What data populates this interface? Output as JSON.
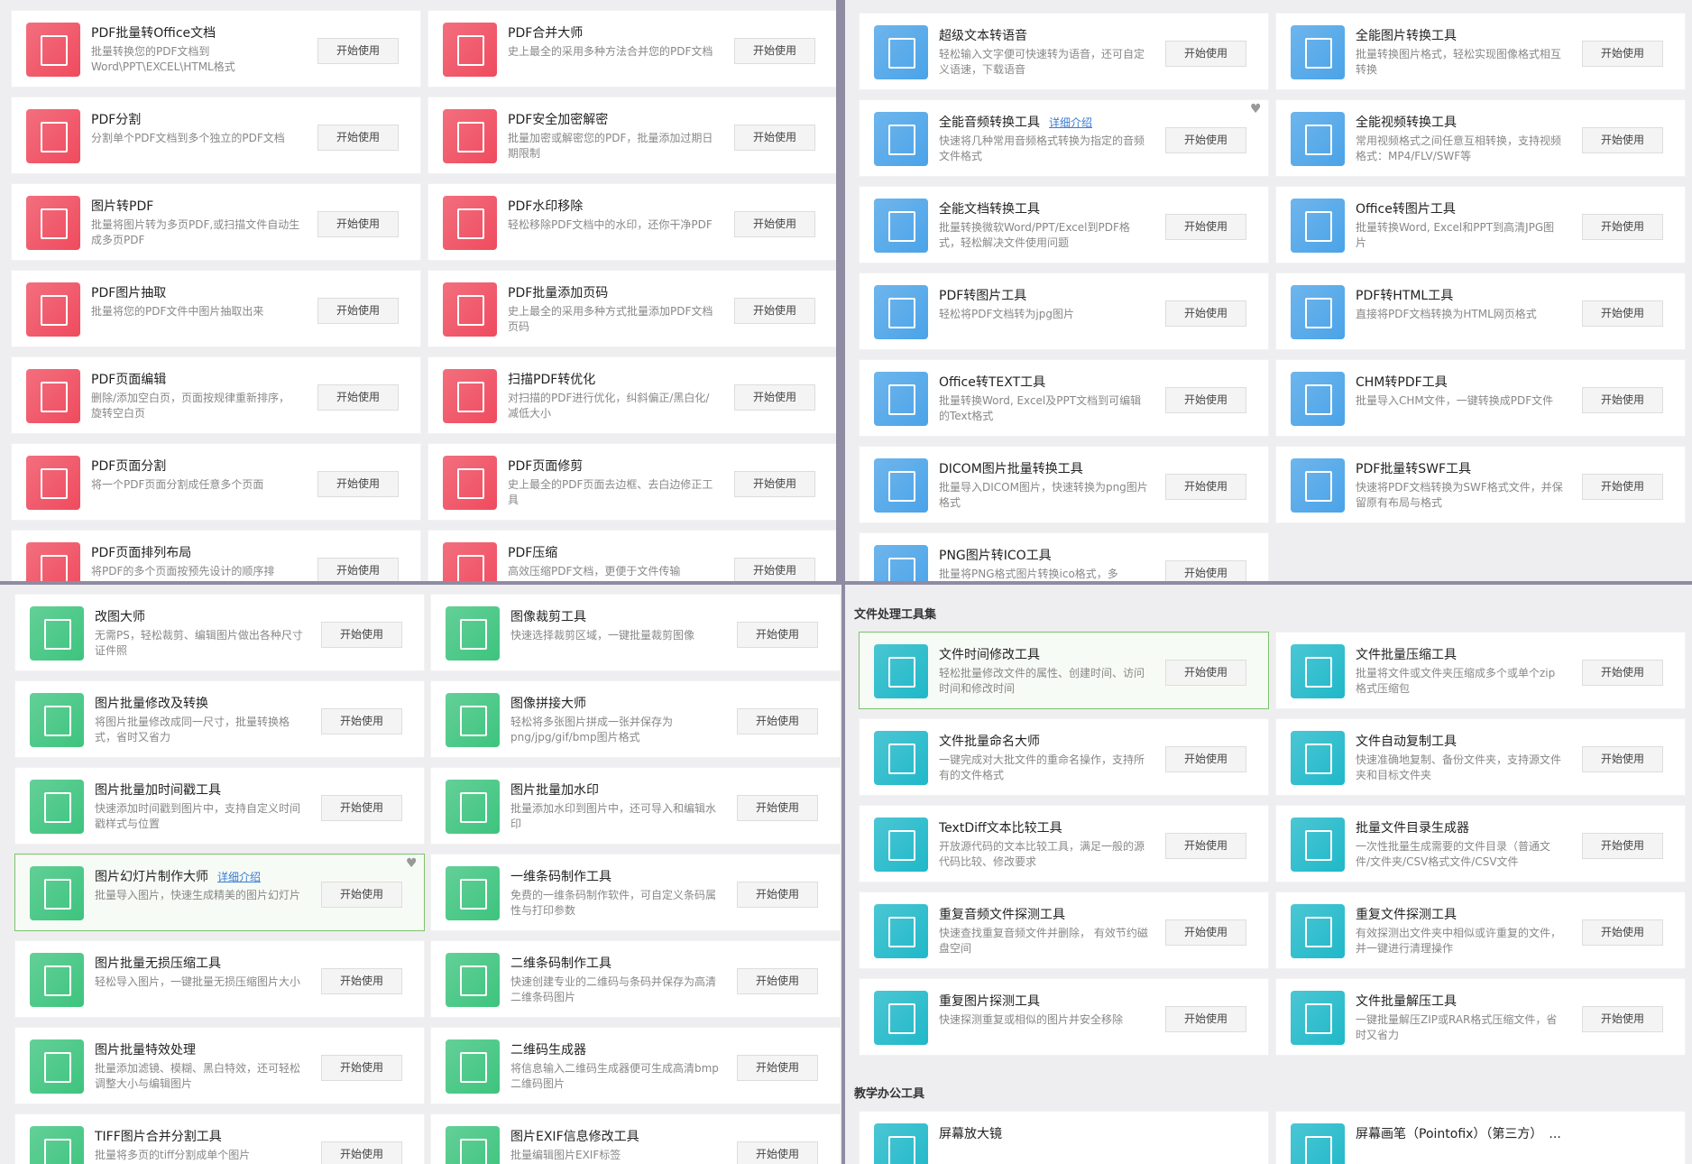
{
  "panels": [
    {
      "icon_color": "#ef4b5e",
      "cards": [
        {
          "title": "PDF批量转Office文档",
          "desc": "批量转换您的PDF文档到Word\\PPT\\EXCEL\\HTML格式",
          "button": "开始使用"
        },
        {
          "title": "PDF合并大师",
          "desc": "史上最全的采用多种方法合并您的PDF文档",
          "button": "开始使用"
        },
        {
          "title": "PDF分割",
          "desc": "分割单个PDF文档到多个独立的PDF文档",
          "button": "开始使用"
        },
        {
          "title": "PDF安全加密解密",
          "desc": "批量加密或解密您的PDF，批量添加过期日期限制",
          "button": "开始使用"
        },
        {
          "title": "图片转PDF",
          "desc": "批量将图片转为多页PDF,或扫描文件自动生成多页PDF",
          "button": "开始使用"
        },
        {
          "title": "PDF水印移除",
          "desc": "轻松移除PDF文档中的水印，还你干净PDF",
          "button": "开始使用"
        },
        {
          "title": "PDF图片抽取",
          "desc": "批量将您的PDF文件中图片抽取出来",
          "button": "开始使用"
        },
        {
          "title": "PDF批量添加页码",
          "desc": "史上最全的采用多种方式批量添加PDF文档页码",
          "button": "开始使用"
        },
        {
          "title": "PDF页面编辑",
          "desc": "删除/添加空白页，页面按规律重新排序，旋转空白页",
          "button": "开始使用"
        },
        {
          "title": "扫描PDF转优化",
          "desc": "对扫描的PDF进行优化，纠斜偏正/黑白化/减低大小",
          "button": "开始使用"
        },
        {
          "title": "PDF页面分割",
          "desc": "将一个PDF页面分割成任意多个页面",
          "button": "开始使用"
        },
        {
          "title": "PDF页面修剪",
          "desc": "史上最全的PDF页面去边框、去白边修正工具",
          "button": "开始使用"
        },
        {
          "title": "PDF页面排列布局",
          "desc": "将PDF的多个页面按预先设计的顺序排",
          "button": "开始使用"
        },
        {
          "title": "PDF压缩",
          "desc": "高效压缩PDF文档，更便于文件传输",
          "button": "开始使用"
        }
      ]
    },
    {
      "icon_color": "#4aa3e8",
      "cards": [
        {
          "title": "超级文本转语音",
          "desc": "轻松输入文字便可快速转为语音，还可自定义语速，下载语音",
          "button": "开始使用"
        },
        {
          "title": "全能图片转换工具",
          "desc": "批量转换图片格式，轻松实现图像格式相互转换",
          "button": "开始使用"
        },
        {
          "title": "全能音频转换工具",
          "link": "详细介绍",
          "favorite": true,
          "desc": "快速将几种常用音频格式转换为指定的音频文件格式",
          "button": "开始使用"
        },
        {
          "title": "全能视频转换工具",
          "desc": "常用视频格式之间任意互相转换，支持视频格式：MP4/FLV/SWF等",
          "button": "开始使用"
        },
        {
          "title": "全能文档转换工具",
          "desc": "批量转换微软Word/PPT/Excel到PDF格式，轻松解决文件使用问题",
          "button": "开始使用"
        },
        {
          "title": "Office转图片工具",
          "desc": "批量转换Word, Excel和PPT到高清JPG图片",
          "button": "开始使用"
        },
        {
          "title": "PDF转图片工具",
          "desc": "轻松将PDF文档转为jpg图片",
          "button": "开始使用"
        },
        {
          "title": "PDF转HTML工具",
          "desc": "直接将PDF文档转换为HTML网页格式",
          "button": "开始使用"
        },
        {
          "title": "Office转TEXT工具",
          "desc": "批量转换Word, Excel及PPT文档到可编辑的Text格式",
          "button": "开始使用"
        },
        {
          "title": "CHM转PDF工具",
          "desc": "批量导入CHM文件，一键转换成PDF文件",
          "button": "开始使用"
        },
        {
          "title": "DICOM图片批量转换工具",
          "desc": "批量导入DICOM图片，快速转换为png图片格式",
          "button": "开始使用"
        },
        {
          "title": "PDF批量转SWF工具",
          "desc": "快速将PDF文档转换为SWF格式文件，并保留原有布局与格式",
          "button": "开始使用"
        },
        {
          "title": "PNG图片转ICO工具",
          "desc": "批量将PNG格式图片转换ico格式，多",
          "button": "开始使用"
        }
      ]
    },
    {
      "icon_color": "#3dc47e",
      "cards": [
        {
          "title": "改图大师",
          "desc": "无需PS，轻松裁剪、编辑图片做出各种尺寸证件照",
          "button": "开始使用"
        },
        {
          "title": "图像裁剪工具",
          "desc": "快速选择裁剪区域，一键批量裁剪图像",
          "button": "开始使用"
        },
        {
          "title": "图片批量修改及转换",
          "desc": "将图片批量修改成同一尺寸，批量转换格式，省时又省力",
          "button": "开始使用"
        },
        {
          "title": "图像拼接大师",
          "desc": "轻松将多张图片拼成一张并保存为png/jpg/gif/bmp图片格式",
          "button": "开始使用"
        },
        {
          "title": "图片批量加时间戳工具",
          "desc": "快速添加时间戳到图片中，支持自定义时间戳样式与位置",
          "button": "开始使用"
        },
        {
          "title": "图片批量加水印",
          "desc": "批量添加水印到图片中，还可导入和编辑水印",
          "button": "开始使用"
        },
        {
          "title": "图片幻灯片制作大师",
          "link": "详细介绍",
          "favorite": true,
          "highlight": true,
          "desc": "批量导入图片，快速生成精美的图片幻灯片",
          "button": "开始使用"
        },
        {
          "title": "一维条码制作工具",
          "desc": "免费的一维条码制作软件，可自定义条码属性与打印参数",
          "button": "开始使用"
        },
        {
          "title": "图片批量无损压缩工具",
          "desc": "轻松导入图片，一键批量无损压缩图片大小",
          "button": "开始使用"
        },
        {
          "title": "二维条码制作工具",
          "desc": "快速创建专业的二维码与条码并保存为高清二维条码图片",
          "button": "开始使用"
        },
        {
          "title": "图片批量特效处理",
          "desc": "批量添加滤镜、模糊、黑白特效，还可轻松调整大小与编辑图片",
          "button": "开始使用"
        },
        {
          "title": "二维码生成器",
          "desc": "将信息输入二维码生成器便可生成高清bmp二维码图片",
          "button": "开始使用"
        },
        {
          "title": "TIFF图片合并分割工具",
          "desc": "批量将多页的tiff分割成单个图片",
          "button": "开始使用"
        },
        {
          "title": "图片EXIF信息修改工具",
          "desc": "批量编辑图片EXIF标签",
          "button": "开始使用"
        }
      ]
    },
    {
      "icon_color": "#1fb8c9",
      "sections": [
        {
          "heading": "文件处理工具集",
          "cards": [
            {
              "title": "文件时间修改工具",
              "highlight": true,
              "desc": "轻松批量修改文件的属性、创建时间、访问时间和修改时间",
              "button": "开始使用"
            },
            {
              "title": "文件批量压缩工具",
              "desc": "批量将文件或文件夹压缩成多个或单个zip格式压缩包",
              "button": "开始使用"
            },
            {
              "title": "文件批量命名大师",
              "desc": "一键完成对大批文件的重命名操作，支持所有的文件格式",
              "button": "开始使用"
            },
            {
              "title": "文件自动复制工具",
              "desc": "快速准确地复制、备份文件夹，支持源文件夹和目标文件夹",
              "button": "开始使用"
            },
            {
              "title": "TextDiff文本比较工具",
              "desc": "开放源代码的文本比较工具，满足一般的源代码比较、修改要求",
              "button": "开始使用"
            },
            {
              "title": "批量文件目录生成器",
              "desc": "一次性批量生成需要的文件目录（普通文件/文件夹/CSV格式文件/CSV文件",
              "button": "开始使用"
            },
            {
              "title": "重复音频文件探测工具",
              "desc": "快速查找重复音频文件并删除， 有效节约磁盘空间",
              "button": "开始使用"
            },
            {
              "title": "重复文件探测工具",
              "desc": "有效探测出文件夹中相似或许重复的文件，并一键进行清理操作",
              "button": "开始使用"
            },
            {
              "title": "重复图片探测工具",
              "desc": "快速探测重复或相似的图片并安全移除",
              "button": "开始使用"
            },
            {
              "title": "文件批量解压工具",
              "desc": "一键批量解压ZIP或RAR格式压缩文件，省时又省力",
              "button": "开始使用"
            }
          ]
        },
        {
          "heading": "教学办公工具",
          "cards": [
            {
              "title": "屏幕放大镜"
            },
            {
              "title": "屏幕画笔（Pointofix）（第三方）　..."
            }
          ]
        }
      ]
    }
  ]
}
